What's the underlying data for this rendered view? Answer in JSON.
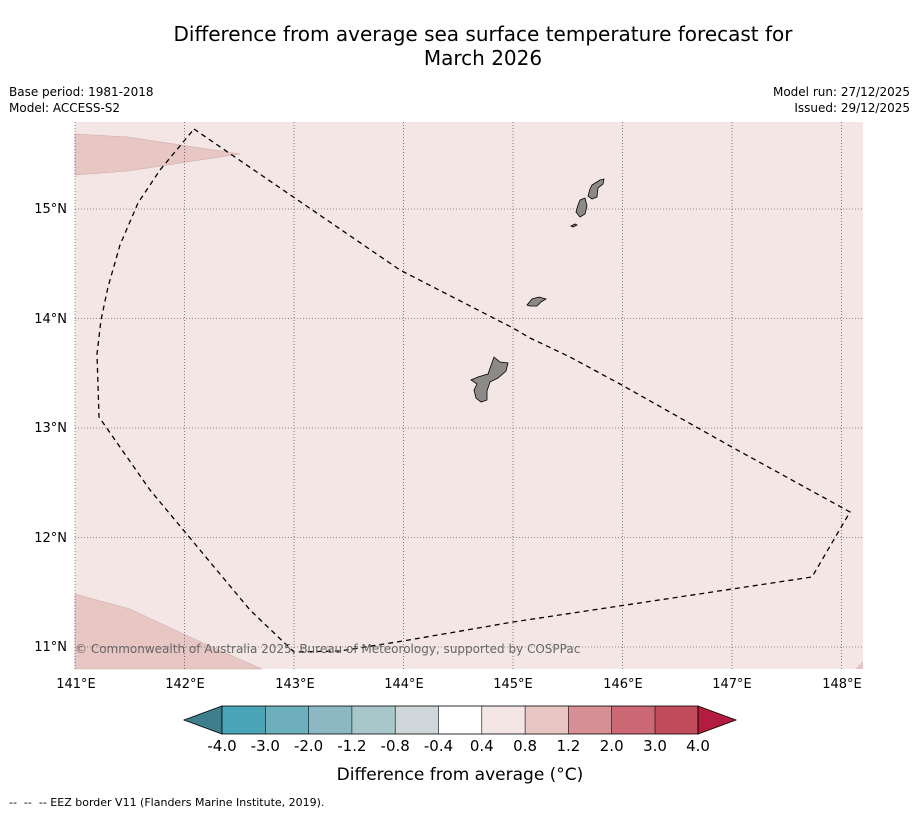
{
  "title_line1": "Difference from average sea surface temperature forecast for",
  "title_line2": "March 2026",
  "base_period": "Base period: 1981-2018",
  "model": "Model: ACCESS-S2",
  "model_run": "Model run: 27/12/2025",
  "issued": "Issued: 29/12/2025",
  "lon_labels": [
    "141°E",
    "142°E",
    "143°E",
    "144°E",
    "145°E",
    "146°E",
    "147°E",
    "148°E"
  ],
  "lat_labels": [
    "15°N",
    "14°N",
    "13°N",
    "12°N",
    "11°N"
  ],
  "copyright": "© Commonwealth of Australia 2025, Bureau of Meteorology, supported by COSPPac",
  "colorbar": {
    "title": "Difference from average (°C)",
    "tick_labels": [
      "-4.0",
      "-3.0",
      "-2.0",
      "-1.2",
      "-0.8",
      "-0.4",
      "0.4",
      "0.8",
      "1.2",
      "2.0",
      "3.0",
      "4.0"
    ],
    "under_color": "#3f7f8c",
    "over_color": "#b31b3f",
    "colors": [
      "#4aa5b6",
      "#6eafbd",
      "#8bb8c3",
      "#a8c7cb",
      "#cfd6d9",
      "#ffffff",
      "#f4e6e5",
      "#e8c6c3",
      "#d78f96",
      "#cc6873",
      "#c14a5b"
    ]
  },
  "colors": {
    "ocean_fill": "#f4e6e5",
    "warm_patch": "#e8c6c3",
    "land": "#8c8989"
  },
  "legend_note": "--  --  -- EEZ border V11 (Flanders Marine Institute, 2019)."
}
